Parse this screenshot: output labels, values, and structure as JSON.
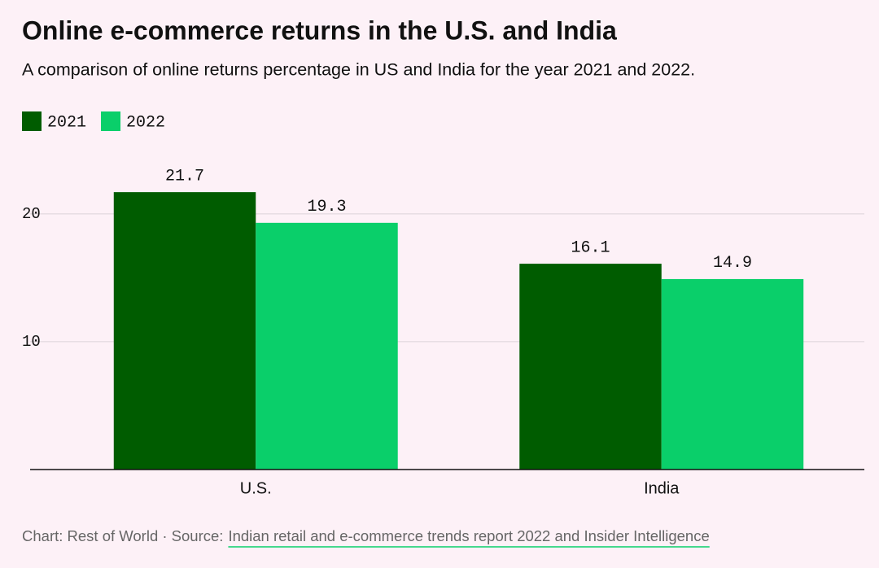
{
  "chart_data": {
    "type": "bar",
    "title": "Online e-commerce returns in the U.S. and India",
    "subtitle": "A comparison of online returns percentage in US and India for the year 2021 and 2022.",
    "categories": [
      "U.S.",
      "India"
    ],
    "series": [
      {
        "name": "2021",
        "color": "#005c00",
        "values": [
          21.7,
          16.1
        ]
      },
      {
        "name": "2022",
        "color": "#0acf6a",
        "values": [
          19.3,
          14.9
        ]
      }
    ],
    "ylim": [
      0,
      24
    ],
    "yticks": [
      10,
      20
    ],
    "grid": true,
    "legend": "top-left",
    "footer": {
      "text": "Chart: Rest of World · Source:",
      "link": "Indian retail and e-commerce trends report 2022 and Insider Intelligence"
    }
  }
}
